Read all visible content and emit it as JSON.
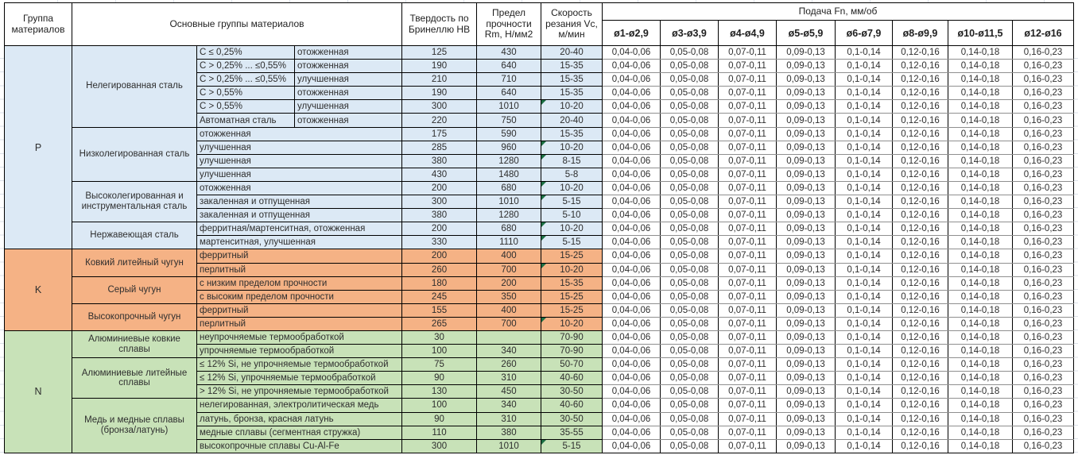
{
  "chart_data": {
    "type": "table",
    "header": {
      "group": "Группа материалов",
      "materials": "Основные группы материалов",
      "hardness": "Твердость по Бринеллю HB",
      "strength": "Предел прочности Rm, Н/мм2",
      "speed": "Скорость резания Vc, м/мин",
      "feed_title": "Подача Fn, мм/об",
      "feed_cols": [
        "ø1-ø2,9",
        "ø3-ø3,9",
        "ø4-ø4,9",
        "ø5-ø5,9",
        "ø6-ø7,9",
        "ø8-ø9,9",
        "ø10-ø11,5",
        "ø12-ø16"
      ]
    },
    "feed_values": [
      "0,04-0,06",
      "0,05-0,08",
      "0,07-0,11",
      "0,09-0,13",
      "0,1-0,14",
      "0,12-0,16",
      "0,14-0,18",
      "0,16-0,23"
    ],
    "colors": {
      "P": "#dce9f5",
      "K": "#f5b285",
      "N": "#c8e2b8",
      "flag": "#1d7044"
    },
    "groups": [
      {
        "letter": "P",
        "families": [
          {
            "name": "Нелегированная сталь",
            "rows": [
              {
                "sub": "C ≤ 0,25%",
                "state": "отожженная",
                "hb": "125",
                "rm": "430",
                "vc": "20-40",
                "flag": false
              },
              {
                "sub": "C > 0,25% ... ≤0,55%",
                "state": "отожженная",
                "hb": "190",
                "rm": "640",
                "vc": "15-35",
                "flag": false
              },
              {
                "sub": "C > 0,25% ... ≤0,55%",
                "state": "улучшенная",
                "hb": "210",
                "rm": "710",
                "vc": "15-35",
                "flag": false
              },
              {
                "sub": "C > 0,55%",
                "state": "отожженная",
                "hb": "190",
                "rm": "640",
                "vc": "15-35",
                "flag": false
              },
              {
                "sub": "C > 0,55%",
                "state": "улучшенная",
                "hb": "300",
                "rm": "1010",
                "vc": "10-20",
                "flag": true
              },
              {
                "sub": "Автоматная сталь",
                "state": "отожженная",
                "hb": "220",
                "rm": "750",
                "vc": "20-40",
                "flag": false
              }
            ]
          },
          {
            "name": "Низколегированная сталь",
            "rows": [
              {
                "detail": "отожженная",
                "hb": "175",
                "rm": "590",
                "vc": "15-35",
                "flag": false
              },
              {
                "detail": "улучшенная",
                "hb": "285",
                "rm": "960",
                "vc": "10-20",
                "flag": true
              },
              {
                "detail": "улучшенная",
                "hb": "380",
                "rm": "1280",
                "vc": "8-15",
                "flag": true
              },
              {
                "detail": "улучшенная",
                "hb": "430",
                "rm": "1480",
                "vc": "5-8",
                "flag": false
              }
            ]
          },
          {
            "name": "Высоколегированная и инструментальная сталь",
            "rows": [
              {
                "detail": "отожженная",
                "hb": "200",
                "rm": "680",
                "vc": "10-20",
                "flag": true
              },
              {
                "detail": "закаленная и отпущенная",
                "hb": "300",
                "rm": "1010",
                "vc": "5-15",
                "flag": true
              },
              {
                "detail": "закаленная и отпущенная",
                "hb": "380",
                "rm": "1280",
                "vc": "5-10",
                "flag": false
              }
            ]
          },
          {
            "name": "Нержавеющая сталь",
            "rows": [
              {
                "detail": "ферритная/мартенситная, отожженная",
                "hb": "200",
                "rm": "680",
                "vc": "10-20",
                "flag": true
              },
              {
                "detail": "мартенситная, улучшенная",
                "hb": "330",
                "rm": "1110",
                "vc": "5-15",
                "flag": true
              }
            ]
          }
        ]
      },
      {
        "letter": "K",
        "families": [
          {
            "name": "Ковкий литейный чугун",
            "rows": [
              {
                "detail": "ферритный",
                "hb": "200",
                "rm": "400",
                "vc": "15-25",
                "flag": false
              },
              {
                "detail": "перлитный",
                "hb": "260",
                "rm": "700",
                "vc": "10-20",
                "flag": true
              }
            ]
          },
          {
            "name": "Серый чугун",
            "rows": [
              {
                "detail": "с низким пределом прочности",
                "hb": "180",
                "rm": "200",
                "vc": "15-35",
                "flag": false
              },
              {
                "detail": "с высоким пределом прочности",
                "hb": "245",
                "rm": "350",
                "vc": "15-25",
                "flag": false
              }
            ]
          },
          {
            "name": "Высокопрочный чугун",
            "rows": [
              {
                "detail": "ферритный",
                "hb": "155",
                "rm": "400",
                "vc": "15-25",
                "flag": false
              },
              {
                "detail": "перлитный",
                "hb": "265",
                "rm": "700",
                "vc": "10-20",
                "flag": true
              }
            ]
          }
        ]
      },
      {
        "letter": "N",
        "families": [
          {
            "name": "Алюминиевые ковкие сплавы",
            "rows": [
              {
                "detail": "неупрочняемые термообработкой",
                "hb": "30",
                "rm": "",
                "vc": "70-90",
                "flag": false
              },
              {
                "detail": "упрочняемые термообработкой",
                "hb": "100",
                "rm": "340",
                "vc": "70-90",
                "flag": false
              }
            ]
          },
          {
            "name": "Алюминиевые литейные сплавы",
            "rows": [
              {
                "detail": "≤ 12% Si, не упрочняемые термообработкой",
                "hb": "75",
                "rm": "260",
                "vc": "50-70",
                "flag": false
              },
              {
                "detail": "≤ 12% Si, упрочняемые термообработкой",
                "hb": "90",
                "rm": "310",
                "vc": "40-60",
                "flag": false
              },
              {
                "detail": "> 12% Si, не упрочняемые термообработкой",
                "hb": "130",
                "rm": "450",
                "vc": "30-50",
                "flag": false
              }
            ]
          },
          {
            "name": "Медь и медные сплавы (бронза/латунь)",
            "rows": [
              {
                "detail": "нелегированная, электролитическая медь",
                "hb": "100",
                "rm": "340",
                "vc": "40-60",
                "flag": false
              },
              {
                "detail": "латунь, бронза, красная латунь",
                "hb": "90",
                "rm": "310",
                "vc": "30-50",
                "flag": false
              },
              {
                "detail": "медные сплавы (сегментная стружка)",
                "hb": "110",
                "rm": "380",
                "vc": "35-55",
                "flag": false
              },
              {
                "detail": "высокопрочные сплавы Cu-Al-Fe",
                "hb": "300",
                "rm": "1010",
                "vc": "5-15",
                "flag": true
              }
            ]
          }
        ]
      }
    ]
  }
}
